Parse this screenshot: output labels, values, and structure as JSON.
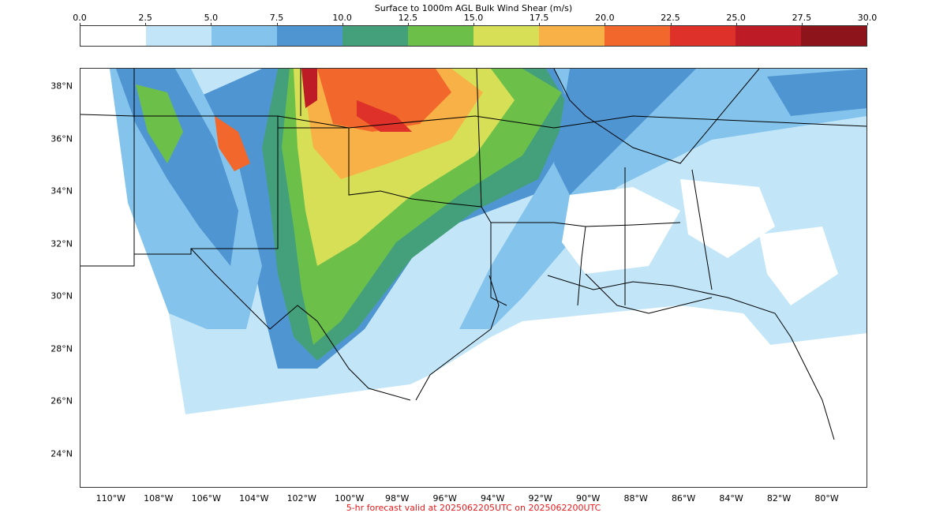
{
  "colorbar": {
    "title": "Surface to 1000m AGL Bulk Wind Shear (m/s)",
    "ticks": [
      "0.0",
      "2.5",
      "5.0",
      "7.5",
      "10.0",
      "12.5",
      "15.0",
      "17.5",
      "20.0",
      "22.5",
      "25.0",
      "27.5",
      "30.0"
    ],
    "colors": [
      "#ffffff",
      "#c2e6f8",
      "#84c4ec",
      "#4f95d2",
      "#44a07a",
      "#6cc04a",
      "#d7df57",
      "#f8b146",
      "#f2672c",
      "#dd3129",
      "#bd1c26",
      "#8e141c"
    ]
  },
  "map": {
    "lat_labels": [
      "38°N",
      "36°N",
      "34°N",
      "32°N",
      "30°N",
      "28°N",
      "26°N",
      "24°N"
    ],
    "lon_labels": [
      "110°W",
      "108°W",
      "106°W",
      "104°W",
      "102°W",
      "100°W",
      "98°W",
      "96°W",
      "94°W",
      "92°W",
      "90°W",
      "88°W",
      "86°W",
      "84°W",
      "82°W",
      "80°W"
    ],
    "extent": {
      "lon_min": -111.3,
      "lon_max": -78.3,
      "lat_min": 22.7,
      "lat_max": 38.7
    }
  },
  "footer": "5-hr forecast valid at 2025062205UTC on 2025062200UTC"
}
